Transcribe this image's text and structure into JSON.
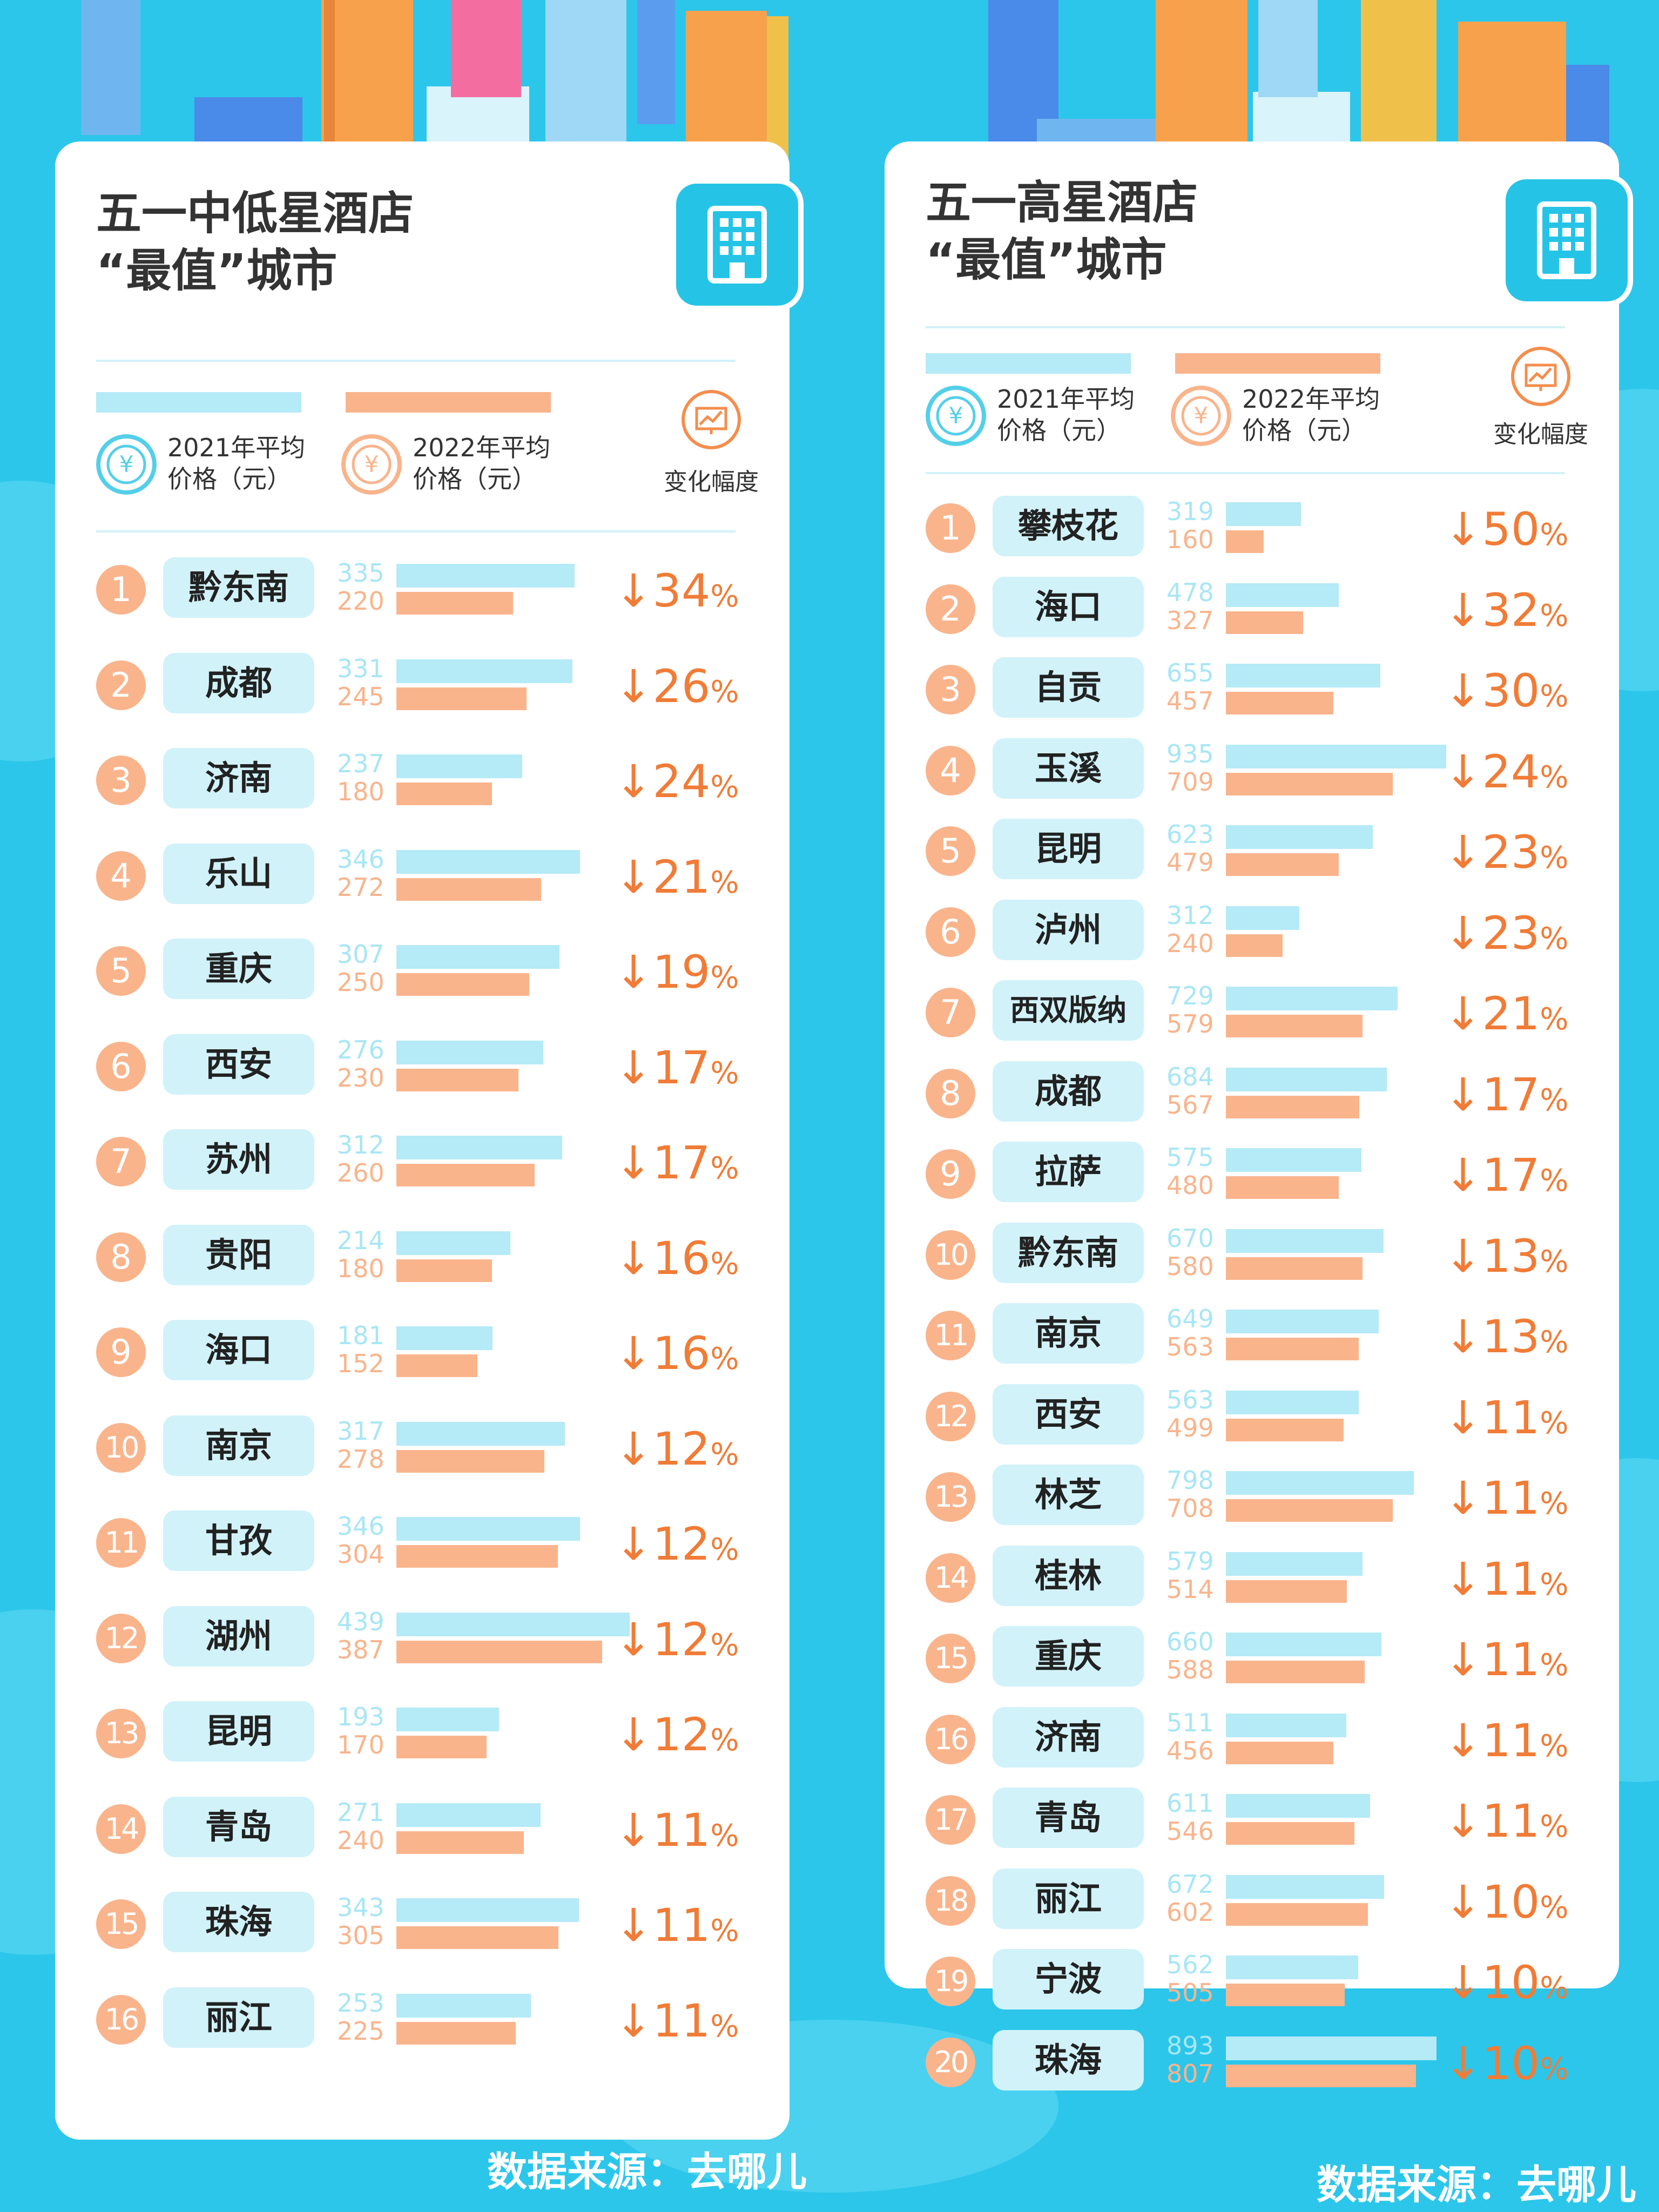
{
  "source_label": "数据来源：去哪儿",
  "legend": {
    "label_2021": "2021年平均\n价格（元）",
    "label_2022": "2022年平均\n价格（元）",
    "change": "变化幅度",
    "currency_icon": "yuan-icon",
    "change_icon": "trend-chart-icon"
  },
  "colors": {
    "bar_2021": "#b5eaf7",
    "bar_2022": "#f9b48c",
    "change_text": "#f07c37",
    "badge": "#25c4e6"
  },
  "chart_data": [
    {
      "type": "bar",
      "title": "五一中低星酒店\n“最值”城市",
      "series_names": [
        "2021年平均价格（元）",
        "2022年平均价格（元）"
      ],
      "rows": [
        {
          "rank": "1",
          "city": "黔东南",
          "v2021": 335,
          "v2022": 220,
          "change": "↓34%"
        },
        {
          "rank": "2",
          "city": "成都",
          "v2021": 331,
          "v2022": 245,
          "change": "↓26%"
        },
        {
          "rank": "3",
          "city": "济南",
          "v2021": 237,
          "v2022": 180,
          "change": "↓24%"
        },
        {
          "rank": "4",
          "city": "乐山",
          "v2021": 346,
          "v2022": 272,
          "change": "↓21%"
        },
        {
          "rank": "5",
          "city": "重庆",
          "v2021": 307,
          "v2022": 250,
          "change": "↓19%"
        },
        {
          "rank": "6",
          "city": "西安",
          "v2021": 276,
          "v2022": 230,
          "change": "↓17%"
        },
        {
          "rank": "7",
          "city": "苏州",
          "v2021": 312,
          "v2022": 260,
          "change": "↓17%"
        },
        {
          "rank": "8",
          "city": "贵阳",
          "v2021": 214,
          "v2022": 180,
          "change": "↓16%"
        },
        {
          "rank": "9",
          "city": "海口",
          "v2021": 181,
          "v2022": 152,
          "change": "↓16%"
        },
        {
          "rank": "10",
          "city": "南京",
          "v2021": 317,
          "v2022": 278,
          "change": "↓12%"
        },
        {
          "rank": "11",
          "city": "甘孜",
          "v2021": 346,
          "v2022": 304,
          "change": "↓12%"
        },
        {
          "rank": "12",
          "city": "湖州",
          "v2021": 439,
          "v2022": 387,
          "change": "↓12%"
        },
        {
          "rank": "13",
          "city": "昆明",
          "v2021": 193,
          "v2022": 170,
          "change": "↓12%"
        },
        {
          "rank": "14",
          "city": "青岛",
          "v2021": 271,
          "v2022": 240,
          "change": "↓11%"
        },
        {
          "rank": "15",
          "city": "珠海",
          "v2021": 343,
          "v2022": 305,
          "change": "↓11%"
        },
        {
          "rank": "16",
          "city": "丽江",
          "v2021": 253,
          "v2022": 225,
          "change": "↓11%"
        }
      ],
      "xlim": [
        0,
        439
      ]
    },
    {
      "type": "bar",
      "title": "五一高星酒店\n“最值”城市",
      "series_names": [
        "2021年平均价格（元）",
        "2022年平均价格（元）"
      ],
      "rows": [
        {
          "rank": "1",
          "city": "攀枝花",
          "v2021": 319,
          "v2022": 160,
          "change": "↓50%"
        },
        {
          "rank": "2",
          "city": "海口",
          "v2021": 478,
          "v2022": 327,
          "change": "↓32%"
        },
        {
          "rank": "3",
          "city": "自贡",
          "v2021": 655,
          "v2022": 457,
          "change": "↓30%"
        },
        {
          "rank": "4",
          "city": "玉溪",
          "v2021": 935,
          "v2022": 709,
          "change": "↓24%"
        },
        {
          "rank": "5",
          "city": "昆明",
          "v2021": 623,
          "v2022": 479,
          "change": "↓23%"
        },
        {
          "rank": "6",
          "city": "泸州",
          "v2021": 312,
          "v2022": 240,
          "change": "↓23%"
        },
        {
          "rank": "7",
          "city": "西双版纳",
          "v2021": 729,
          "v2022": 579,
          "change": "↓21%"
        },
        {
          "rank": "8",
          "city": "成都",
          "v2021": 684,
          "v2022": 567,
          "change": "↓17%"
        },
        {
          "rank": "9",
          "city": "拉萨",
          "v2021": 575,
          "v2022": 480,
          "change": "↓17%"
        },
        {
          "rank": "10",
          "city": "黔东南",
          "v2021": 670,
          "v2022": 580,
          "change": "↓13%"
        },
        {
          "rank": "11",
          "city": "南京",
          "v2021": 649,
          "v2022": 563,
          "change": "↓13%"
        },
        {
          "rank": "12",
          "city": "西安",
          "v2021": 563,
          "v2022": 499,
          "change": "↓11%"
        },
        {
          "rank": "13",
          "city": "林芝",
          "v2021": 798,
          "v2022": 708,
          "change": "↓11%"
        },
        {
          "rank": "14",
          "city": "桂林",
          "v2021": 579,
          "v2022": 514,
          "change": "↓11%"
        },
        {
          "rank": "15",
          "city": "重庆",
          "v2021": 660,
          "v2022": 588,
          "change": "↓11%"
        },
        {
          "rank": "16",
          "city": "济南",
          "v2021": 511,
          "v2022": 456,
          "change": "↓11%"
        },
        {
          "rank": "17",
          "city": "青岛",
          "v2021": 611,
          "v2022": 546,
          "change": "↓11%"
        },
        {
          "rank": "18",
          "city": "丽江",
          "v2021": 672,
          "v2022": 602,
          "change": "↓10%"
        },
        {
          "rank": "19",
          "city": "宁波",
          "v2021": 562,
          "v2022": 505,
          "change": "↓10%"
        },
        {
          "rank": "20",
          "city": "珠海",
          "v2021": 893,
          "v2022": 807,
          "change": "↓10%"
        }
      ],
      "xlim": [
        0,
        935
      ]
    }
  ]
}
